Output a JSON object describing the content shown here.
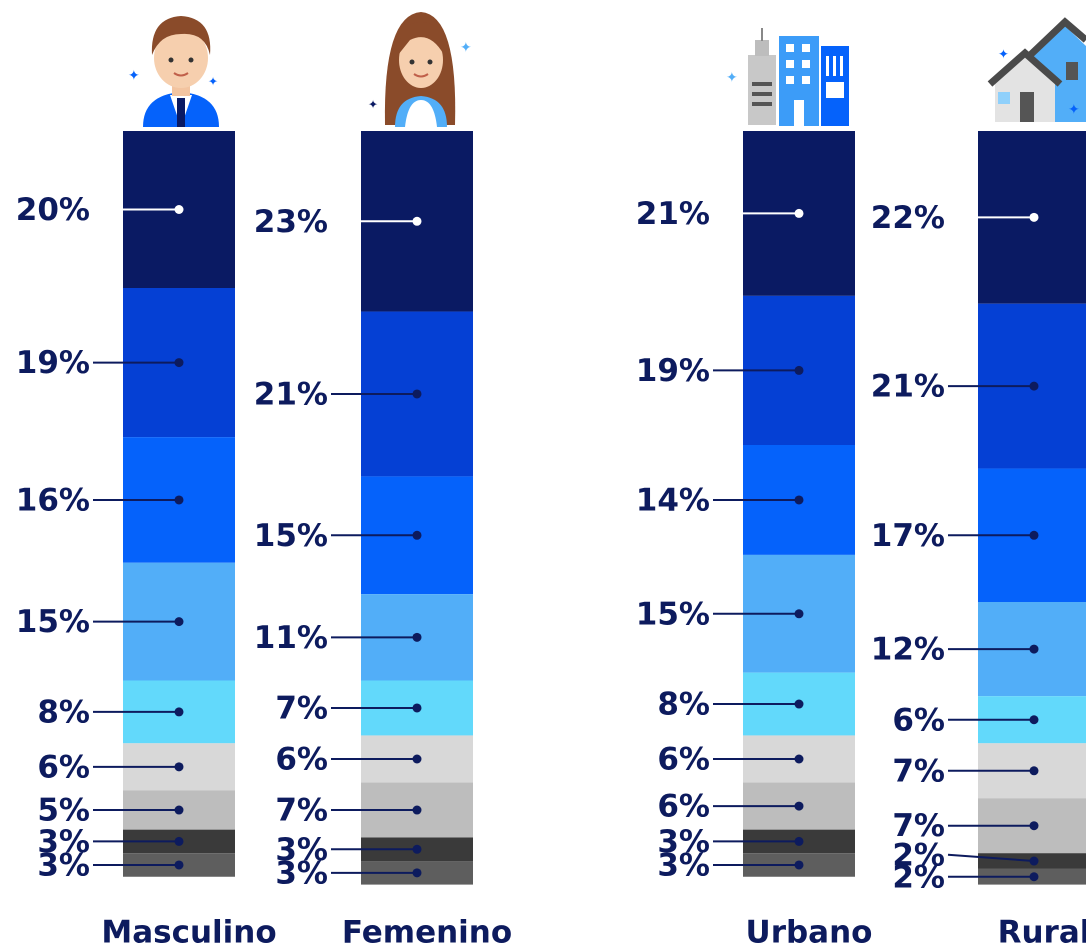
{
  "chart_data": {
    "type": "bar",
    "stacked": true,
    "categories": [
      "Masculino",
      "Femenino",
      "Urbano",
      "Rural"
    ],
    "series": [
      {
        "color": "#0a1a63",
        "values": [
          20,
          23,
          21,
          22
        ],
        "value_labels": [
          "20%",
          "23%",
          "21%",
          "22%"
        ]
      },
      {
        "color": "#0540d4",
        "values": [
          19,
          21,
          19,
          21
        ],
        "value_labels": [
          "19%",
          "21%",
          "19%",
          "21%"
        ]
      },
      {
        "color": "#0562fb",
        "values": [
          16,
          15,
          14,
          17
        ],
        "value_labels": [
          "16%",
          "15%",
          "14%",
          "17%"
        ]
      },
      {
        "color": "#52aef8",
        "values": [
          15,
          11,
          15,
          12
        ],
        "value_labels": [
          "15%",
          "11%",
          "15%",
          "12%"
        ]
      },
      {
        "color": "#62d9fb",
        "values": [
          8,
          7,
          8,
          6
        ],
        "value_labels": [
          "8%",
          "7%",
          "8%",
          "6%"
        ]
      },
      {
        "color": "#d8d8d8",
        "values": [
          6,
          6,
          6,
          7
        ],
        "value_labels": [
          "6%",
          "6%",
          "6%",
          "7%"
        ]
      },
      {
        "color": "#bdbdbd",
        "values": [
          5,
          7,
          6,
          7
        ],
        "value_labels": [
          "5%",
          "7%",
          "6%",
          "7%"
        ]
      },
      {
        "color": "#3a3a3a",
        "values": [
          3,
          3,
          3,
          2
        ],
        "value_labels": [
          "3%",
          "3%",
          "3%",
          "2%"
        ]
      },
      {
        "color": "#5e5e5e",
        "values": [
          3,
          3,
          3,
          2
        ],
        "value_labels": [
          "3%",
          "3%",
          "3%",
          "2%"
        ]
      }
    ]
  }
}
